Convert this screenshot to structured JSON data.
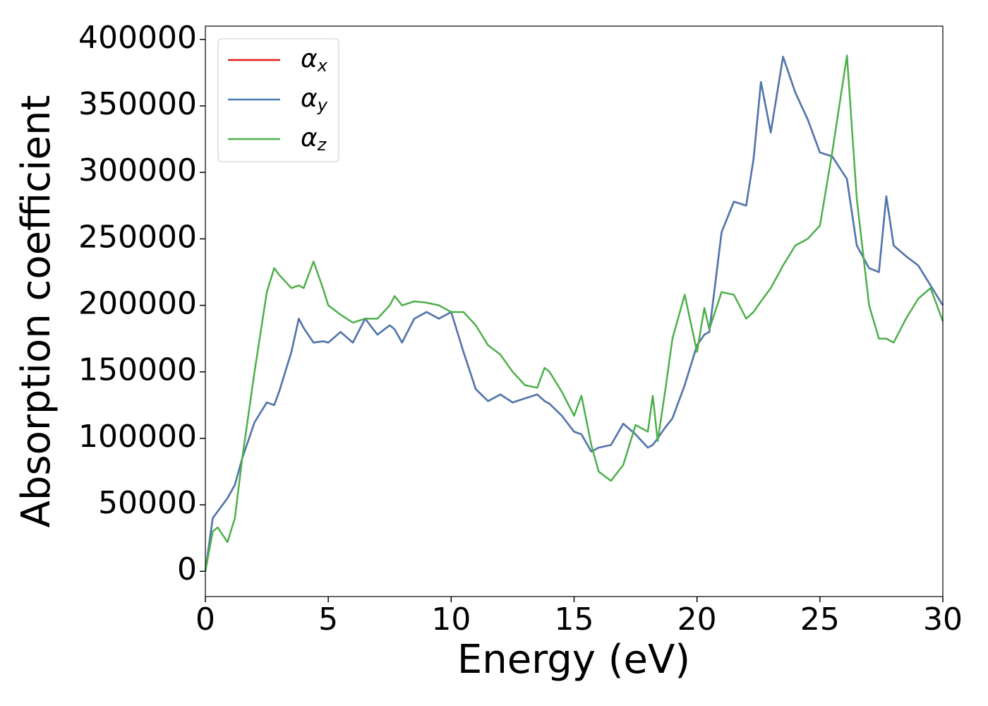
{
  "chart_data": {
    "type": "line",
    "xlabel": "Energy (eV)",
    "ylabel": "Absorption coefficient",
    "x": [
      0,
      0.3,
      0.5,
      0.9,
      1.2,
      1.5,
      2.0,
      2.5,
      2.8,
      3.0,
      3.5,
      3.8,
      4.0,
      4.4,
      4.8,
      5.0,
      5.5,
      6.0,
      6.5,
      7.0,
      7.5,
      7.7,
      8.0,
      8.5,
      9.0,
      9.5,
      10.0,
      10.5,
      11.0,
      11.5,
      12.0,
      12.5,
      13.0,
      13.5,
      13.8,
      14.0,
      14.5,
      15.0,
      15.3,
      15.7,
      16.0,
      16.5,
      17.0,
      17.5,
      18.0,
      18.2,
      18.4,
      18.7,
      19.0,
      19.5,
      20.0,
      20.3,
      20.5,
      21.0,
      21.5,
      22.0,
      22.3,
      22.6,
      23.0,
      23.5,
      24.0,
      24.5,
      25.0,
      25.5,
      26.1,
      26.5,
      27.0,
      27.4,
      27.7,
      28.0,
      28.5,
      29.0,
      29.5,
      30.0
    ],
    "series": [
      {
        "name": "αx",
        "color": "#e41a1c",
        "values": [
          0,
          40000,
          45000,
          55000,
          65000,
          85000,
          112000,
          127000,
          125000,
          135000,
          165000,
          190000,
          183000,
          172000,
          173000,
          172000,
          180000,
          172000,
          190000,
          178000,
          185000,
          182000,
          172000,
          190000,
          195000,
          190000,
          195000,
          165000,
          137000,
          128000,
          133000,
          127000,
          130000,
          133000,
          128000,
          126000,
          117000,
          105000,
          103000,
          90000,
          93000,
          95000,
          111000,
          103000,
          93000,
          95000,
          100000,
          108000,
          115000,
          140000,
          170000,
          178000,
          180000,
          255000,
          278000,
          275000,
          310000,
          368000,
          330000,
          387000,
          360000,
          340000,
          315000,
          312000,
          295000,
          245000,
          228000,
          225000,
          282000,
          245000,
          237000,
          230000,
          215000,
          200000
        ]
      },
      {
        "name": "αy",
        "color": "#4a7ab3",
        "values": [
          0,
          40000,
          45000,
          55000,
          65000,
          85000,
          112000,
          127000,
          125000,
          135000,
          165000,
          190000,
          183000,
          172000,
          173000,
          172000,
          180000,
          172000,
          190000,
          178000,
          185000,
          182000,
          172000,
          190000,
          195000,
          190000,
          195000,
          165000,
          137000,
          128000,
          133000,
          127000,
          130000,
          133000,
          128000,
          126000,
          117000,
          105000,
          103000,
          90000,
          93000,
          95000,
          111000,
          103000,
          93000,
          95000,
          100000,
          108000,
          115000,
          140000,
          170000,
          178000,
          180000,
          255000,
          278000,
          275000,
          310000,
          368000,
          330000,
          387000,
          360000,
          340000,
          315000,
          312000,
          295000,
          245000,
          228000,
          225000,
          282000,
          245000,
          237000,
          230000,
          215000,
          200000
        ]
      },
      {
        "name": "αz",
        "color": "#4daf4a",
        "values": [
          0,
          30000,
          33000,
          22000,
          40000,
          85000,
          150000,
          210000,
          228000,
          223000,
          213000,
          215000,
          213000,
          233000,
          212000,
          200000,
          193000,
          187000,
          190000,
          190000,
          200000,
          207000,
          200000,
          203000,
          202000,
          200000,
          195000,
          195000,
          185000,
          170000,
          163000,
          150000,
          140000,
          138000,
          153000,
          150000,
          135000,
          117000,
          132000,
          95000,
          75000,
          68000,
          80000,
          110000,
          105000,
          132000,
          98000,
          135000,
          175000,
          208000,
          165000,
          198000,
          182000,
          210000,
          208000,
          190000,
          195000,
          203000,
          213000,
          230000,
          245000,
          250000,
          260000,
          315000,
          388000,
          280000,
          200000,
          175000,
          175000,
          172000,
          190000,
          205000,
          213000,
          188000
        ]
      }
    ],
    "xlim": [
      0,
      30
    ],
    "xticks": [
      0,
      5,
      10,
      15,
      20,
      25,
      30
    ],
    "ylim": [
      -19000,
      410000
    ],
    "yticks": [
      0,
      50000,
      100000,
      150000,
      200000,
      250000,
      300000,
      350000,
      400000
    ],
    "legend": "upper left"
  }
}
